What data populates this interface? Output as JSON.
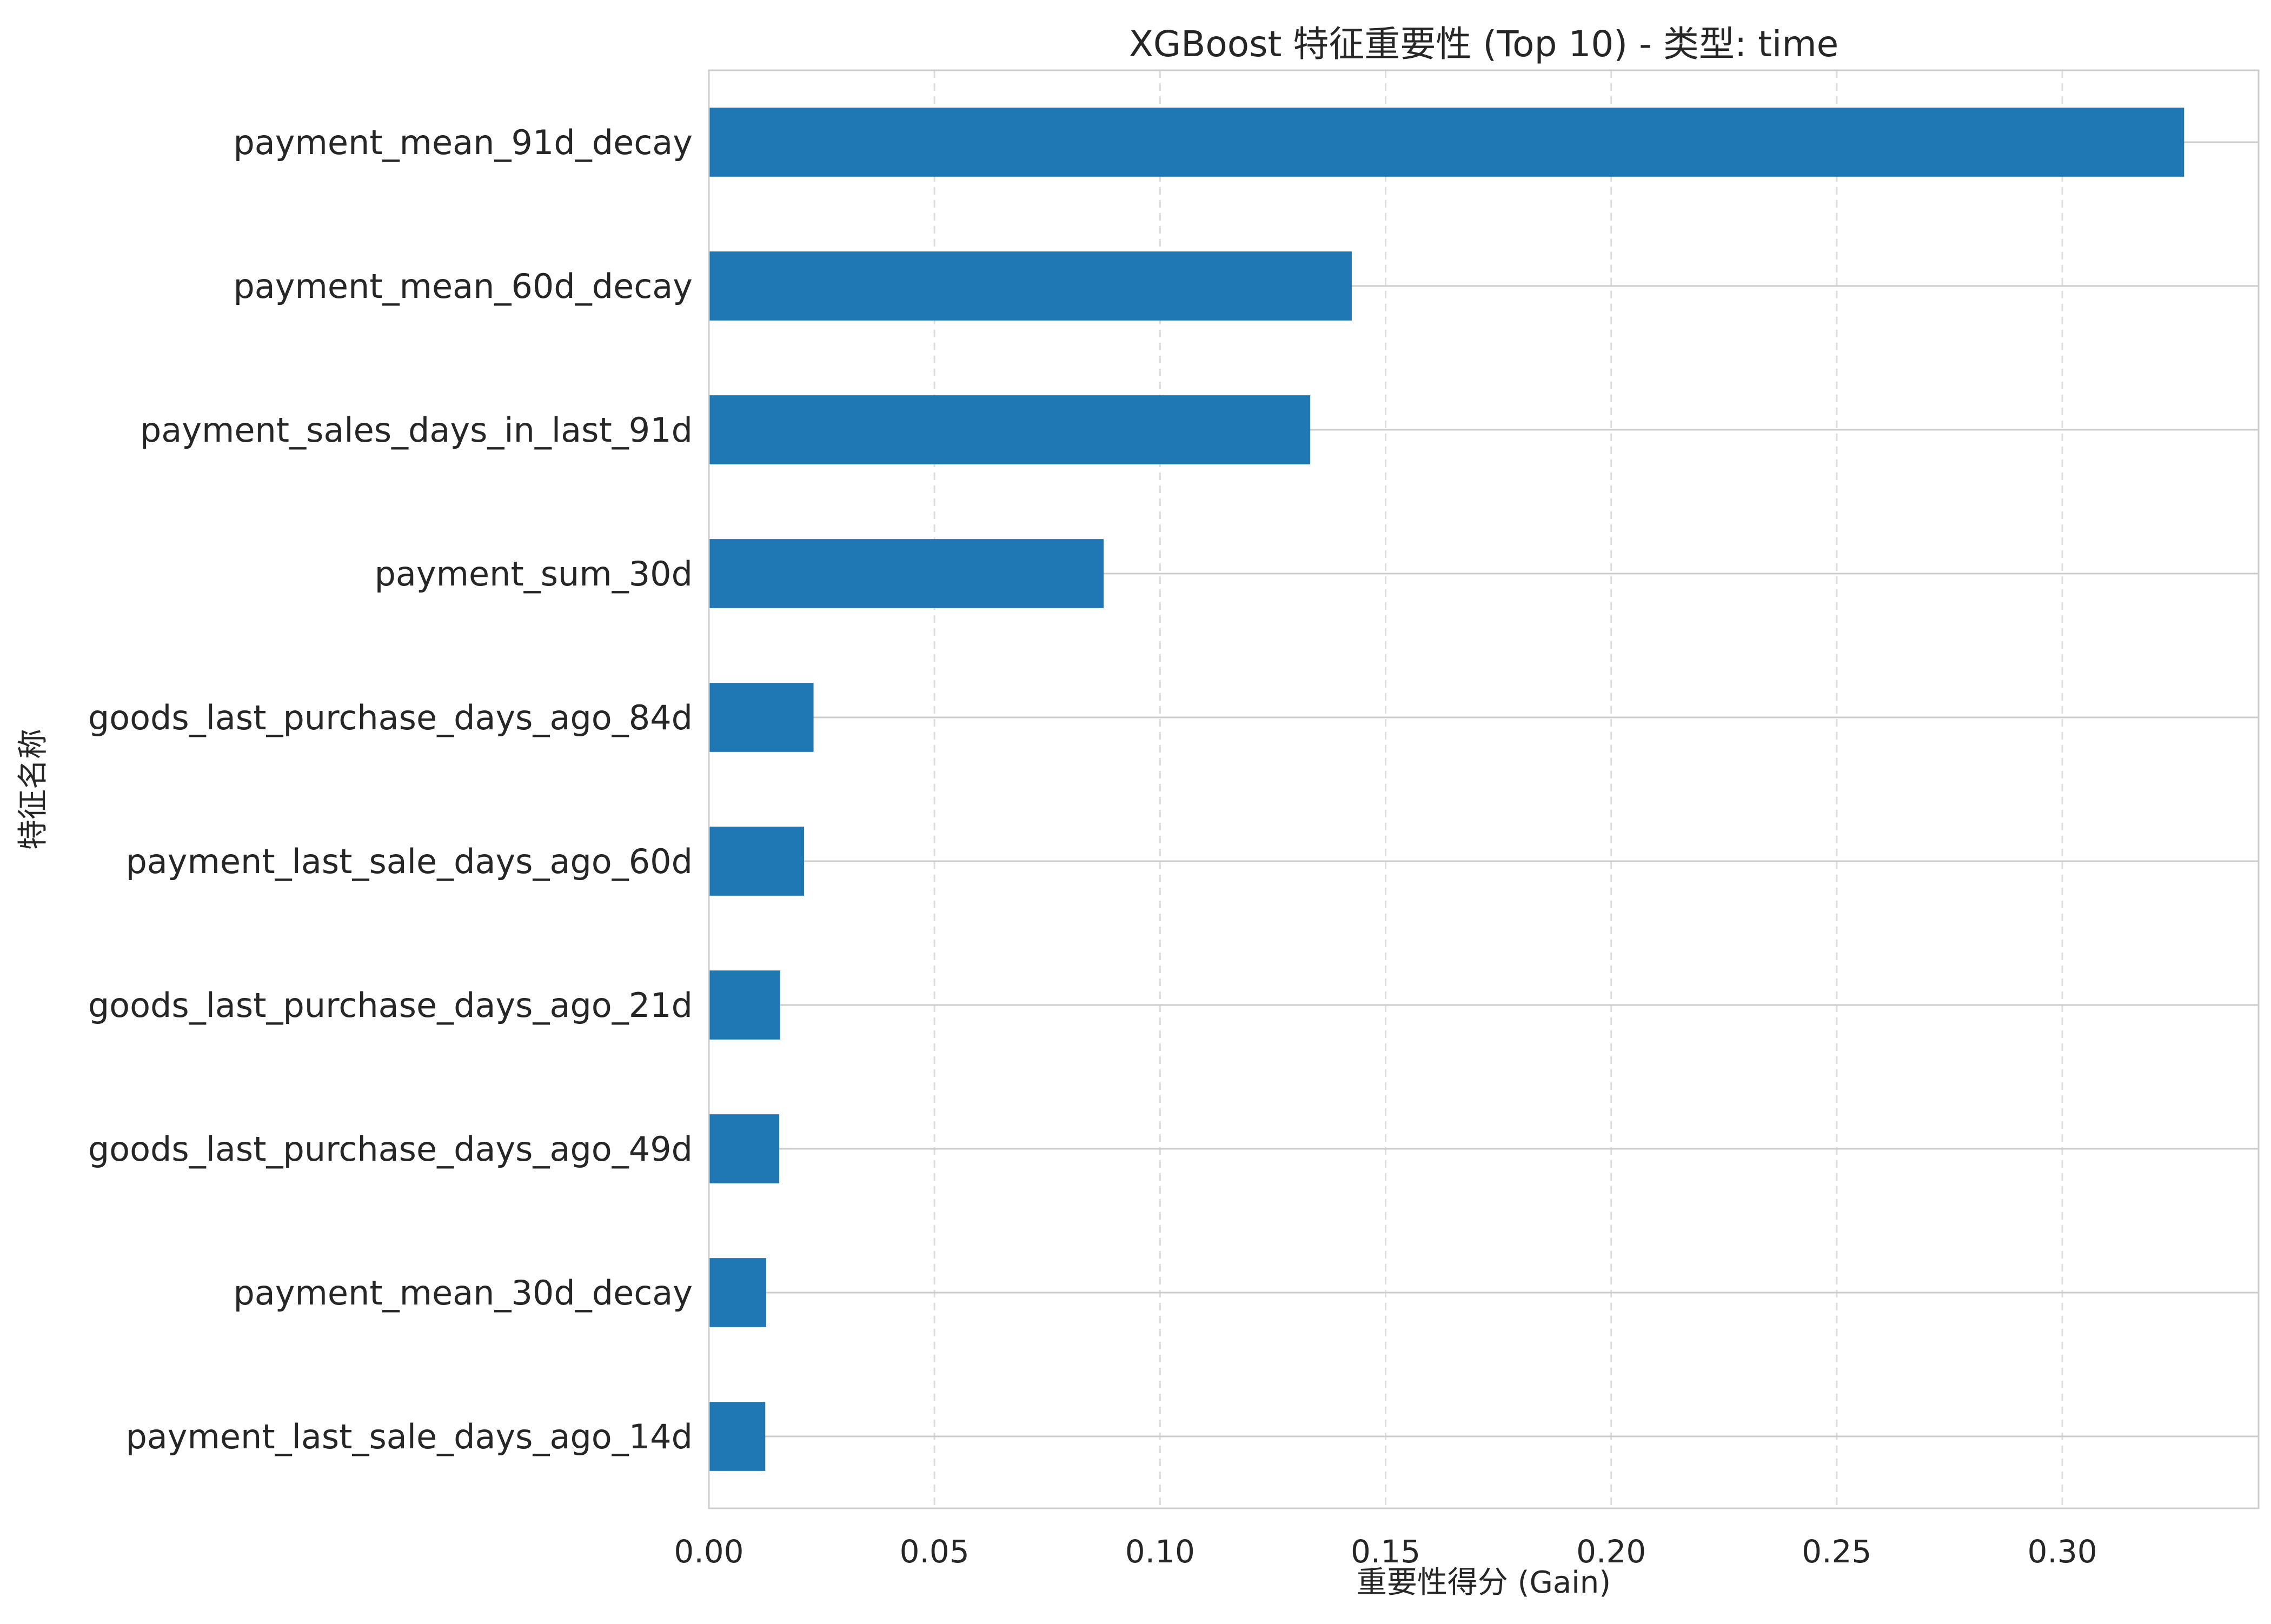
{
  "chart_data": {
    "type": "bar",
    "orientation": "horizontal",
    "title": "XGBoost 特征重要性 (Top 10) - 类型: time",
    "xlabel": "重要性得分 (Gain)",
    "ylabel": "特征名称",
    "categories": [
      "payment_mean_91d_decay",
      "payment_mean_60d_decay",
      "payment_sales_days_in_last_91d",
      "payment_sum_30d",
      "goods_last_purchase_days_ago_84d",
      "payment_last_sale_days_ago_60d",
      "goods_last_purchase_days_ago_21d",
      "goods_last_purchase_days_ago_49d",
      "payment_mean_30d_decay",
      "payment_last_sale_days_ago_14d"
    ],
    "values": [
      0.327,
      0.1425,
      0.1333,
      0.0875,
      0.0232,
      0.0211,
      0.0158,
      0.0156,
      0.0127,
      0.0125
    ],
    "xlim": [
      0.0,
      0.3435
    ],
    "xticks": [
      0.0,
      0.05,
      0.1,
      0.15,
      0.2,
      0.25,
      0.3
    ],
    "xtick_labels": [
      "0.00",
      "0.05",
      "0.10",
      "0.15",
      "0.20",
      "0.25",
      "0.30"
    ],
    "bar_color": "#1f77b4",
    "grid": true
  }
}
